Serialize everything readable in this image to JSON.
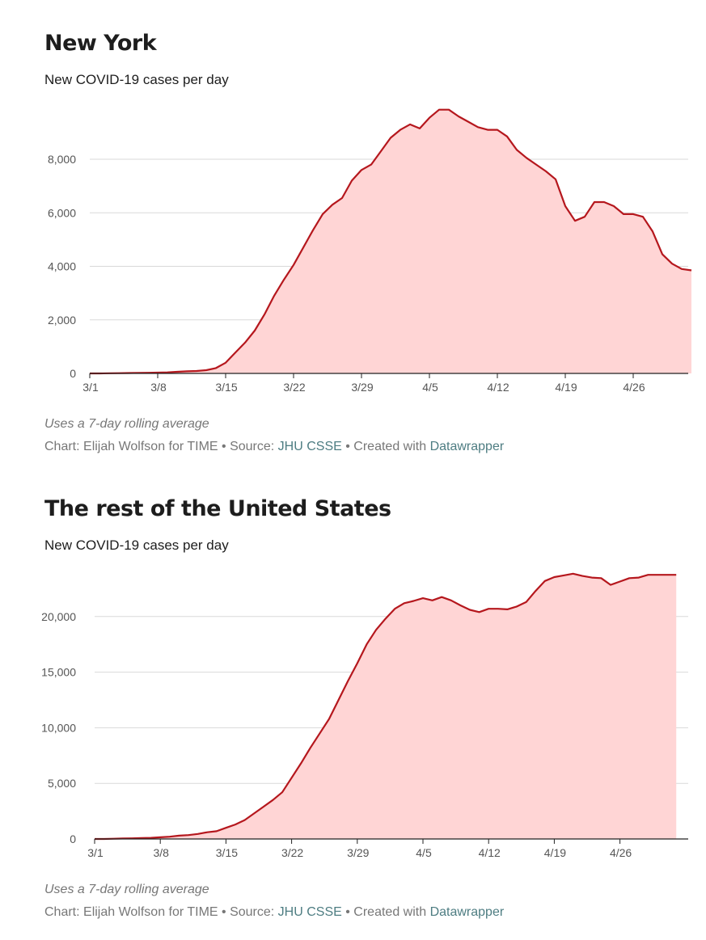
{
  "charts": [
    {
      "title": "New York",
      "subtitle": "New COVID-19 cases per day",
      "notes": "Uses a 7-day rolling average",
      "credit": {
        "prefix": "Chart: Elijah Wolfson for TIME • Source: ",
        "source_link": "JHU CSSE",
        "middle": " • Created with ",
        "tool_link": "Datawrapper"
      }
    },
    {
      "title": "The rest of the United States",
      "subtitle": "New COVID-19 cases per day",
      "notes": "Uses a 7-day rolling average",
      "credit": {
        "prefix": "Chart: Elijah Wolfson for TIME • Source: ",
        "source_link": "JHU CSSE",
        "middle": " • Created with ",
        "tool_link": "Datawrapper"
      }
    }
  ],
  "colors": {
    "line": "#b5171d",
    "fill": "#ffd5d5",
    "grid": "#d9d9d9",
    "axis": "#222222",
    "link": "#4e7d82"
  },
  "chart_data": [
    {
      "type": "area",
      "title": "New York",
      "subtitle": "New COVID-19 cases per day",
      "ylabel": "",
      "xlabel": "",
      "ylim": [
        0,
        10000
      ],
      "yticks": [
        0,
        2000,
        4000,
        6000,
        8000
      ],
      "ytick_labels": [
        "0",
        "2,000",
        "4,000",
        "6,000",
        "8,000"
      ],
      "xticks": [
        "3/1",
        "3/8",
        "3/15",
        "3/22",
        "3/29",
        "4/5",
        "4/12",
        "4/19",
        "4/26"
      ],
      "grid": true,
      "series": [
        {
          "x": [
            "3/1",
            "3/2",
            "3/3",
            "3/4",
            "3/5",
            "3/6",
            "3/7",
            "3/8",
            "3/9",
            "3/10",
            "3/11",
            "3/12",
            "3/13",
            "3/14",
            "3/15",
            "3/16",
            "3/17",
            "3/18",
            "3/19",
            "3/20",
            "3/21",
            "3/22",
            "3/23",
            "3/24",
            "3/25",
            "3/26",
            "3/27",
            "3/28",
            "3/29",
            "3/30",
            "3/31",
            "4/1",
            "4/2",
            "4/3",
            "4/4",
            "4/5",
            "4/6",
            "4/7",
            "4/8",
            "4/9",
            "4/10",
            "4/11",
            "4/12",
            "4/13",
            "4/14",
            "4/15",
            "4/16",
            "4/17",
            "4/18",
            "4/19",
            "4/20",
            "4/21",
            "4/22",
            "4/23",
            "4/24",
            "4/25",
            "4/26",
            "4/27",
            "4/28",
            "4/29",
            "4/30",
            "5/1",
            "5/2"
          ],
          "values": [
            0,
            0,
            5,
            10,
            15,
            20,
            25,
            30,
            40,
            60,
            80,
            90,
            120,
            200,
            400,
            780,
            1150,
            1600,
            2200,
            2900,
            3500,
            4050,
            4700,
            5350,
            5950,
            6300,
            6550,
            7200,
            7600,
            7800,
            8300,
            8800,
            9100,
            9300,
            9150,
            9550,
            9850,
            9850,
            9600,
            9400,
            9200,
            9100,
            9100,
            8850,
            8350,
            8050,
            7800,
            7550,
            7250,
            6250,
            5700,
            5850,
            6400,
            6400,
            6250,
            5950,
            5950,
            5850,
            5300,
            4450,
            4100,
            3900,
            3850
          ]
        }
      ]
    },
    {
      "type": "area",
      "title": "The rest of the United States",
      "subtitle": "New COVID-19 cases per day",
      "ylabel": "",
      "xlabel": "",
      "ylim": [
        0,
        25000
      ],
      "yticks": [
        0,
        5000,
        10000,
        15000,
        20000
      ],
      "ytick_labels": [
        "0",
        "5,000",
        "10,000",
        "15,000",
        "20,000"
      ],
      "xticks": [
        "3/1",
        "3/8",
        "3/15",
        "3/22",
        "3/29",
        "4/5",
        "4/12",
        "4/19",
        "4/26"
      ],
      "grid": true,
      "series": [
        {
          "x": [
            "3/1",
            "3/2",
            "3/3",
            "3/4",
            "3/5",
            "3/6",
            "3/7",
            "3/8",
            "3/9",
            "3/10",
            "3/11",
            "3/12",
            "3/13",
            "3/14",
            "3/15",
            "3/16",
            "3/17",
            "3/18",
            "3/19",
            "3/20",
            "3/21",
            "3/22",
            "3/23",
            "3/24",
            "3/25",
            "3/26",
            "3/27",
            "3/28",
            "3/29",
            "3/30",
            "3/31",
            "4/1",
            "4/2",
            "4/3",
            "4/4",
            "4/5",
            "4/6",
            "4/7",
            "4/8",
            "4/9",
            "4/10",
            "4/11",
            "4/12",
            "4/13",
            "4/14",
            "4/15",
            "4/16",
            "4/17",
            "4/18",
            "4/19",
            "4/20",
            "4/21",
            "4/22",
            "4/23",
            "4/24",
            "4/25",
            "4/26",
            "4/27",
            "4/28",
            "4/29",
            "4/30",
            "5/1",
            "5/2"
          ],
          "values": [
            0,
            0,
            20,
            40,
            60,
            80,
            100,
            150,
            200,
            300,
            350,
            450,
            600,
            700,
            1000,
            1300,
            1700,
            2300,
            2900,
            3500,
            4200,
            5500,
            6800,
            8200,
            9500,
            10800,
            12500,
            14200,
            15800,
            17500,
            18800,
            19800,
            20700,
            21200,
            21400,
            21650,
            21450,
            21750,
            21450,
            21000,
            20600,
            20400,
            20700,
            20700,
            20650,
            20900,
            21300,
            22300,
            23200,
            23550,
            23700,
            23850,
            23650,
            23500,
            23450,
            22850,
            23150,
            23450,
            23500,
            23750,
            23750,
            23750,
            23750
          ]
        }
      ]
    }
  ]
}
